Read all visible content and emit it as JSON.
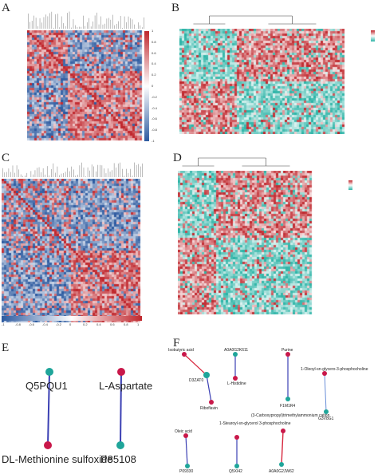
{
  "panels": {
    "a": {
      "label": "A"
    },
    "b": {
      "label": "B"
    },
    "c": {
      "label": "C"
    },
    "d": {
      "label": "D"
    },
    "e": {
      "label": "E"
    },
    "f": {
      "label": "F"
    }
  },
  "colors": {
    "red": "#c0272d",
    "blue": "#2c5aa0",
    "teal": "#2ab3a6",
    "white": "#ffffff",
    "edge_blue": "#3a3fb3",
    "edge_red": "#d7263d",
    "node_teal": "#1fa59a",
    "node_red": "#c9184a"
  },
  "scale_a": {
    "ticks": [
      "1",
      "0.8",
      "0.6",
      "0.4",
      "0.2",
      "0",
      "-0.2",
      "-0.4",
      "-0.6",
      "-0.8",
      "-1"
    ]
  },
  "scale_c": {
    "ticks": [
      "-1",
      "-0.8",
      "-0.6",
      "-0.4",
      "-0.2",
      "0",
      "0.2",
      "0.4",
      "0.6",
      "0.8",
      "1"
    ]
  },
  "network_e": {
    "pairs": [
      {
        "top": "Q5PQU1",
        "bottom": "DL-Methionine sulfoxide",
        "top_color": "teal",
        "bottom_color": "red"
      },
      {
        "top": "L-Aspartate",
        "bottom": "P85108",
        "top_color": "red",
        "bottom_color": "teal"
      }
    ]
  },
  "network_f": {
    "pairs": [
      {
        "a": "Isobutyric acid",
        "b": "D3ZAT0",
        "c": "Riboflavin"
      },
      {
        "a": "A0A0G2K611",
        "b": "L-Histidine"
      },
      {
        "a": "Purine",
        "b": "F1M1R4"
      },
      {
        "a": "1-Oleoyl-sn-glycero-3-phosphocholine",
        "b": "G3V8G1"
      },
      {
        "a": "Oleic acid",
        "b": "P09330"
      },
      {
        "a": "1-Stearoyl-sn-glycerol 3-phosphocholine",
        "b": "Q5XI42"
      },
      {
        "a": "(3-Carboxypropyl)trimethylammonium cation",
        "b": "A0A0G2JW62"
      }
    ]
  }
}
